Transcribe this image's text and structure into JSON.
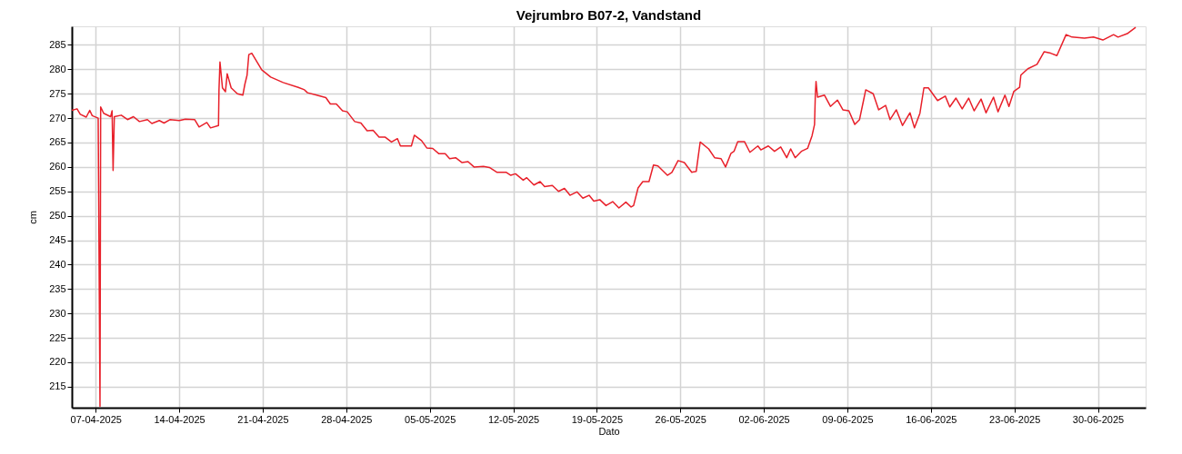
{
  "chart_data": {
    "type": "line",
    "title": "Vejrumbro B07-2, Vandstand",
    "xlabel": "Dato",
    "ylabel": "cm",
    "xlim": [
      "2025-04-05",
      "2025-07-04"
    ],
    "ylim": [
      210.7,
      288.8
    ],
    "xticks": [
      {
        "value": "2025-04-07",
        "label": "07-04-2025"
      },
      {
        "value": "2025-04-14",
        "label": "14-04-2025"
      },
      {
        "value": "2025-04-21",
        "label": "21-04-2025"
      },
      {
        "value": "2025-04-28",
        "label": "28-04-2025"
      },
      {
        "value": "2025-05-05",
        "label": "05-05-2025"
      },
      {
        "value": "2025-05-12",
        "label": "12-05-2025"
      },
      {
        "value": "2025-05-19",
        "label": "19-05-2025"
      },
      {
        "value": "2025-05-26",
        "label": "26-05-2025"
      },
      {
        "value": "2025-06-02",
        "label": "02-06-2025"
      },
      {
        "value": "2025-06-09",
        "label": "09-06-2025"
      },
      {
        "value": "2025-06-16",
        "label": "16-06-2025"
      },
      {
        "value": "2025-06-23",
        "label": "23-06-2025"
      },
      {
        "value": "2025-06-30",
        "label": "30-06-2025"
      }
    ],
    "yticks": [
      215,
      220,
      225,
      230,
      235,
      240,
      245,
      250,
      255,
      260,
      265,
      270,
      275,
      280,
      285
    ],
    "grid": true,
    "legend": false,
    "marker": "none",
    "line_style": "solid",
    "series": [
      {
        "color": "#e8202a",
        "x": [
          "2025-04-05T00:00",
          "2025-04-05T10:30",
          "2025-04-05T17:00",
          "2025-04-06T05:00",
          "2025-04-06T12:00",
          "2025-04-06T17:00",
          "2025-04-07T05:00",
          "2025-04-07T08:40",
          "2025-04-07T10:00",
          "2025-04-07T16:00",
          "2025-04-08T06:00",
          "2025-04-08T09:00",
          "2025-04-08T11:00",
          "2025-04-08T13:30",
          "2025-04-09T03:30",
          "2025-04-09T16:00",
          "2025-04-10T04:00",
          "2025-04-10T16:00",
          "2025-04-11T08:00",
          "2025-04-11T17:00",
          "2025-04-12T08:00",
          "2025-04-12T17:30",
          "2025-04-13T06:00",
          "2025-04-14T00:00",
          "2025-04-14T12:30",
          "2025-04-15T07:00",
          "2025-04-15T16:00",
          "2025-04-16T07:30",
          "2025-04-16T15:00",
          "2025-04-17T07:00",
          "2025-04-17T08:00",
          "2025-04-17T10:00",
          "2025-04-17T15:00",
          "2025-04-17T21:00",
          "2025-04-18T00:30",
          "2025-04-18T08:30",
          "2025-04-18T21:00",
          "2025-04-19T08:00",
          "2025-04-19T12:00",
          "2025-04-19T16:30",
          "2025-04-19T20:00",
          "2025-04-20T02:00",
          "2025-04-20T22:00",
          "2025-04-21T16:00",
          "2025-04-22T17:00",
          "2025-04-23T23:30",
          "2025-04-24T12:00",
          "2025-04-24T18:00",
          "2025-04-25T12:30",
          "2025-04-26T07:00",
          "2025-04-26T16:00",
          "2025-04-27T04:00",
          "2025-04-27T16:30",
          "2025-04-28T02:00",
          "2025-04-28T17:00",
          "2025-04-29T05:30",
          "2025-04-29T18:00",
          "2025-04-30T06:00",
          "2025-04-30T18:00",
          "2025-05-01T06:30",
          "2025-05-01T19:00",
          "2025-05-02T07:00",
          "2025-05-02T13:00",
          "2025-05-03T11:00",
          "2025-05-03T17:00",
          "2025-05-04T07:30",
          "2025-05-04T18:00",
          "2025-05-05T06:00",
          "2025-05-05T18:30",
          "2025-05-06T07:00",
          "2025-05-06T16:00",
          "2025-05-07T04:00",
          "2025-05-07T17:00",
          "2025-05-08T05:00",
          "2025-05-08T17:00",
          "2025-05-09T12:00",
          "2025-05-10T00:00",
          "2025-05-10T15:30",
          "2025-05-11T10:00",
          "2025-05-11T19:00",
          "2025-05-12T04:30",
          "2025-05-12T20:00",
          "2025-05-13T03:00",
          "2025-05-13T17:30",
          "2025-05-14T06:00",
          "2025-05-14T15:00",
          "2025-05-15T06:30",
          "2025-05-15T19:00",
          "2025-05-16T07:00",
          "2025-05-16T18:00",
          "2025-05-17T08:00",
          "2025-05-17T20:00",
          "2025-05-18T08:30",
          "2025-05-18T18:00",
          "2025-05-19T06:00",
          "2025-05-19T18:30",
          "2025-05-20T08:00",
          "2025-05-20T20:30",
          "2025-05-21T10:30",
          "2025-05-21T21:00",
          "2025-05-22T02:00",
          "2025-05-22T11:00",
          "2025-05-22T20:30",
          "2025-05-23T09:00",
          "2025-05-23T18:00",
          "2025-05-24T03:00",
          "2025-05-24T22:00",
          "2025-05-25T07:00",
          "2025-05-25T19:30",
          "2025-05-26T08:00",
          "2025-05-26T23:00",
          "2025-05-27T08:00",
          "2025-05-27T16:00",
          "2025-05-28T09:00",
          "2025-05-28T21:00",
          "2025-05-29T10:00",
          "2025-05-29T19:00",
          "2025-05-30T06:00",
          "2025-05-30T12:00",
          "2025-05-30T19:30",
          "2025-05-31T09:00",
          "2025-05-31T20:00",
          "2025-06-01T12:00",
          "2025-06-01T18:00",
          "2025-06-02T09:00",
          "2025-06-02T21:30",
          "2025-06-03T10:00",
          "2025-06-03T22:00",
          "2025-06-04T06:00",
          "2025-06-04T15:00",
          "2025-06-05T03:30",
          "2025-06-05T16:00",
          "2025-06-06T01:00",
          "2025-06-06T06:00",
          "2025-06-06T07:30",
          "2025-06-06T09:00",
          "2025-06-06T12:00",
          "2025-06-07T02:00",
          "2025-06-07T14:00",
          "2025-06-08T04:00",
          "2025-06-08T15:00",
          "2025-06-09T03:00",
          "2025-06-09T15:00",
          "2025-06-10T00:30",
          "2025-06-10T08:30",
          "2025-06-10T13:00",
          "2025-06-11T04:00",
          "2025-06-11T15:00",
          "2025-06-12T05:00",
          "2025-06-12T14:00",
          "2025-06-13T02:30",
          "2025-06-13T15:00",
          "2025-06-14T06:00",
          "2025-06-14T15:00",
          "2025-06-15T02:00",
          "2025-06-15T10:00",
          "2025-06-15T19:00",
          "2025-06-16T13:30",
          "2025-06-17T05:00",
          "2025-06-17T14:00",
          "2025-06-18T02:30",
          "2025-06-18T15:00",
          "2025-06-19T04:00",
          "2025-06-19T15:00",
          "2025-06-20T05:00",
          "2025-06-20T15:00",
          "2025-06-21T06:00",
          "2025-06-21T15:00",
          "2025-06-22T05:00",
          "2025-06-22T13:00",
          "2025-06-22T23:00",
          "2025-06-23T10:30",
          "2025-06-23T13:00",
          "2025-06-24T03:00",
          "2025-06-24T21:30",
          "2025-06-25T12:00",
          "2025-06-26T01:00",
          "2025-06-26T13:30",
          "2025-06-27T08:00",
          "2025-06-27T20:00",
          "2025-06-28T21:00",
          "2025-06-29T15:00",
          "2025-06-30T10:00",
          "2025-07-01T07:30",
          "2025-07-01T16:30",
          "2025-07-02T11:00",
          "2025-07-03T04:00"
        ],
        "values": [
          271.6,
          271.9,
          270.8,
          270.2,
          271.6,
          270.5,
          270.0,
          211.0,
          272.3,
          271.0,
          270.3,
          271.5,
          259.3,
          270.3,
          270.6,
          269.7,
          270.3,
          269.3,
          269.7,
          268.9,
          269.5,
          269.0,
          269.7,
          269.5,
          269.8,
          269.7,
          268.2,
          269.1,
          268.0,
          268.5,
          275.8,
          281.5,
          276.2,
          275.4,
          279.1,
          276.2,
          275.0,
          274.7,
          276.9,
          278.8,
          283.0,
          283.3,
          279.9,
          278.4,
          277.3,
          276.3,
          275.8,
          275.2,
          274.7,
          274.2,
          272.9,
          272.9,
          271.5,
          271.3,
          269.3,
          269.0,
          267.4,
          267.5,
          266.1,
          266.1,
          265.1,
          265.8,
          264.3,
          264.3,
          266.5,
          265.4,
          263.9,
          263.8,
          262.7,
          262.7,
          261.7,
          261.9,
          260.9,
          261.1,
          260.0,
          260.1,
          259.9,
          258.9,
          258.9,
          258.3,
          258.6,
          257.3,
          257.8,
          256.3,
          257.0,
          256.0,
          256.2,
          255.0,
          255.6,
          254.2,
          254.9,
          253.6,
          254.2,
          253.0,
          253.3,
          252.1,
          252.9,
          251.6,
          252.8,
          251.8,
          252.1,
          255.7,
          257.0,
          257.0,
          260.4,
          260.2,
          258.3,
          258.9,
          261.3,
          260.9,
          258.9,
          259.1,
          265.1,
          263.7,
          261.9,
          261.7,
          260.0,
          262.8,
          263.2,
          265.2,
          265.2,
          263.0,
          264.3,
          263.5,
          264.3,
          263.2,
          264.1,
          261.9,
          263.7,
          261.9,
          263.2,
          263.8,
          266.4,
          268.7,
          274.5,
          277.5,
          274.3,
          274.7,
          272.4,
          273.7,
          271.7,
          271.5,
          268.7,
          269.7,
          273.6,
          275.8,
          275.0,
          271.7,
          272.6,
          269.7,
          271.7,
          268.5,
          271.1,
          268.0,
          271.0,
          276.2,
          276.2,
          273.6,
          274.5,
          272.3,
          274.1,
          271.9,
          274.1,
          271.5,
          273.9,
          271.1,
          274.3,
          271.3,
          274.7,
          272.4,
          275.5,
          276.3,
          278.8,
          280.1,
          281.0,
          283.6,
          283.3,
          282.8,
          287.1,
          286.6,
          286.4,
          286.6,
          286.0,
          287.1,
          286.6,
          287.3,
          288.6
        ]
      }
    ]
  }
}
